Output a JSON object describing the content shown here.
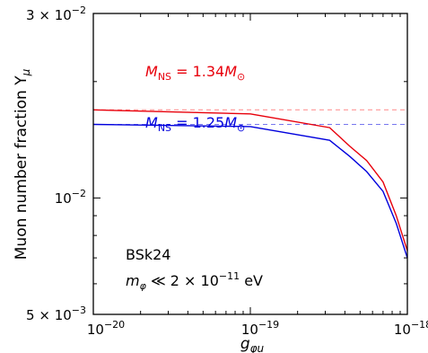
{
  "chart_data": {
    "type": "line",
    "xscale": "log",
    "yscale": "log",
    "xlim": [
      1e-20,
      1e-18
    ],
    "ylim": [
      0.005,
      0.03
    ],
    "xlabel": "g",
    "xlabel_sub": "φu",
    "ylabel": "Muon number fraction Y",
    "ylabel_sub": "μ",
    "x_ticks": [
      {
        "value": 1e-20,
        "base": "10",
        "exp": "−20"
      },
      {
        "value": 1e-19,
        "base": "10",
        "exp": "−19"
      },
      {
        "value": 1e-18,
        "base": "10",
        "exp": "−18"
      }
    ],
    "y_ticks": [
      {
        "value": 0.03,
        "coef": "3 × ",
        "base": "10",
        "exp": "−2"
      },
      {
        "value": 0.01,
        "coef": "",
        "base": "10",
        "exp": "−2"
      },
      {
        "value": 0.005,
        "coef": "5 × ",
        "base": "10",
        "exp": "−3"
      }
    ],
    "series": [
      {
        "name": "M_NS = 1.34 M_sun",
        "color": "#e8000b",
        "x": [
          1e-20,
          1e-19,
          3.2e-19,
          4.3e-19,
          5.5e-19,
          7e-19,
          8.5e-19,
          1e-18
        ],
        "y": [
          0.0169,
          0.0165,
          0.0152,
          0.0136,
          0.0125,
          0.011,
          0.009,
          0.0073
        ]
      },
      {
        "name": "M_NS = 1.25 M_sun",
        "color": "#0000dd",
        "x": [
          1e-20,
          1e-19,
          3.2e-19,
          4.3e-19,
          5.5e-19,
          7e-19,
          8.5e-19,
          1e-18
        ],
        "y": [
          0.0155,
          0.0153,
          0.0141,
          0.0128,
          0.0117,
          0.0104,
          0.0086,
          0.007
        ]
      }
    ],
    "reference_lines": [
      {
        "y": 0.0169,
        "color": "#ff8888",
        "style": "dashed"
      },
      {
        "y": 0.0155,
        "color": "#7777ee",
        "style": "dashed"
      }
    ],
    "annotations": {
      "red_label": {
        "pre": "M",
        "sub": "NS",
        "mid": " = 1.34",
        "post": "M",
        "post_sub": "⊙",
        "color": "#e8000b"
      },
      "blue_label": {
        "pre": "M",
        "sub": "NS",
        "mid": " = 1.25",
        "post": "M",
        "post_sub": "⊙",
        "color": "#0000dd"
      },
      "model": "BSk24",
      "condition": {
        "m": "m",
        "m_sub": "φ",
        "rel": " ≪ 2 × 10",
        "exp": "−11",
        "unit": " eV"
      }
    }
  }
}
